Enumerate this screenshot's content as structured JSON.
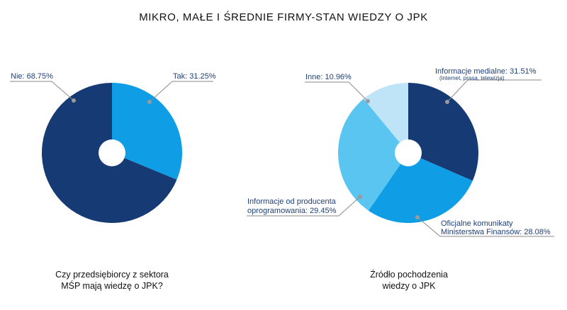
{
  "title": "MIKRO, MAŁE I ŚREDNIE FIRMY-STAN WIEDZY O JPK",
  "colors": {
    "navy": "#163a73",
    "blue": "#0f9de6",
    "light_blue": "#5bc5f2",
    "pale_blue": "#bfe4f8",
    "label": "#1f3f7a",
    "leader": "#8a8a8a"
  },
  "chart_data": [
    {
      "type": "pie",
      "caption_line1": "Czy przedsiębiorcy z sektora",
      "caption_line2": "MŚP mają wiedzę o JPK?",
      "slices": [
        {
          "label": "Tak: 31.25%",
          "value": 31.25,
          "color": "#0f9de6"
        },
        {
          "label": "Nie: 68.75%",
          "value": 68.75,
          "color": "#163a73"
        }
      ]
    },
    {
      "type": "pie",
      "caption_line1": "Źródło pochodzenia",
      "caption_line2": "wiedzy o JPK",
      "slices": [
        {
          "label": "Informacje medialne: 31.51%",
          "sublabel": "(internet, prasa, telewizja)",
          "value": 31.51,
          "color": "#163a73"
        },
        {
          "label_line1": "Oficjalne komunikaty",
          "label_line2": "Ministerstwa Finansów: 28.08%",
          "value": 28.08,
          "color": "#0f9de6"
        },
        {
          "label_line1": "Informacje od producenta",
          "label_line2": "oprogramowania: 29.45%",
          "value": 29.45,
          "color": "#5bc5f2"
        },
        {
          "label": "Inne: 10.96%",
          "value": 10.96,
          "color": "#bfe4f8"
        }
      ]
    }
  ]
}
